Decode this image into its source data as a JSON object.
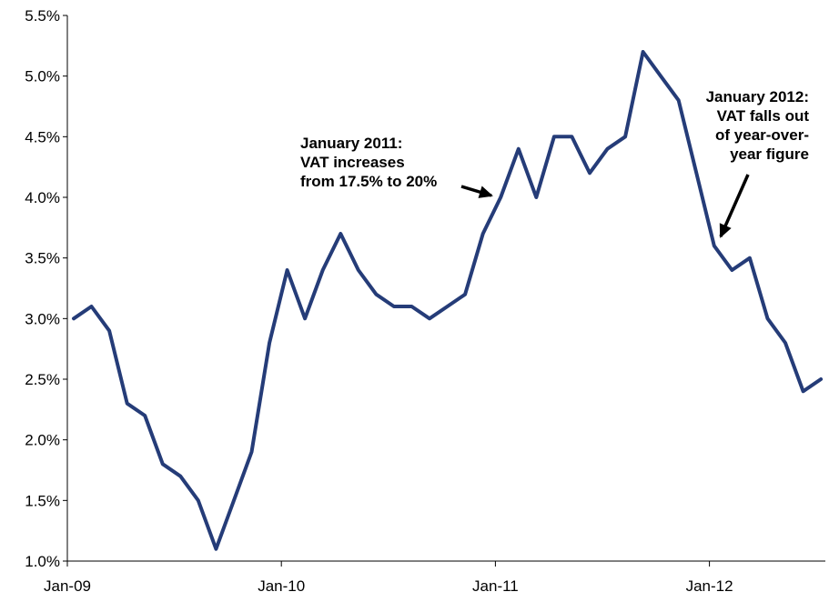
{
  "chart_data": {
    "type": "line",
    "title": "",
    "xlabel": "",
    "ylabel": "",
    "ylim": [
      1.0,
      5.5
    ],
    "y_ticks": [
      "1.0%",
      "1.5%",
      "2.0%",
      "2.5%",
      "3.0%",
      "3.5%",
      "4.0%",
      "4.5%",
      "5.0%",
      "5.5%"
    ],
    "x_ticks": [
      "Jan-09",
      "Jan-10",
      "Jan-11",
      "Jan-12"
    ],
    "grid": false,
    "series": [
      {
        "color": "#253C78",
        "x": [
          "2009-01",
          "2009-02",
          "2009-03",
          "2009-04",
          "2009-05",
          "2009-06",
          "2009-07",
          "2009-08",
          "2009-09",
          "2009-10",
          "2009-11",
          "2009-12",
          "2010-01",
          "2010-02",
          "2010-03",
          "2010-04",
          "2010-05",
          "2010-06",
          "2010-07",
          "2010-08",
          "2010-09",
          "2010-10",
          "2010-11",
          "2010-12",
          "2011-01",
          "2011-02",
          "2011-03",
          "2011-04",
          "2011-05",
          "2011-06",
          "2011-07",
          "2011-08",
          "2011-09",
          "2011-10",
          "2011-11",
          "2011-12",
          "2012-01",
          "2012-02",
          "2012-03",
          "2012-04",
          "2012-05",
          "2012-06",
          "2012-07"
        ],
        "values": [
          3.0,
          3.1,
          2.9,
          2.3,
          2.2,
          1.8,
          1.7,
          1.5,
          1.1,
          1.5,
          1.9,
          2.8,
          3.4,
          3.0,
          3.4,
          3.7,
          3.4,
          3.2,
          3.1,
          3.1,
          3.0,
          3.1,
          3.2,
          3.7,
          4.0,
          4.4,
          4.0,
          4.5,
          4.5,
          4.2,
          4.4,
          4.5,
          5.2,
          5.0,
          4.8,
          4.2,
          3.6,
          3.4,
          3.5,
          3.0,
          2.8,
          2.4,
          2.5
        ]
      }
    ],
    "annotations": [
      {
        "lines": [
          "January 2011:",
          "VAT increases",
          "from 17.5% to 20%"
        ],
        "points_to": "2011-01"
      },
      {
        "lines": [
          "January 2012:",
          "VAT falls out",
          "of year-over-",
          "year figure"
        ],
        "points_to": "2012-01"
      }
    ]
  }
}
